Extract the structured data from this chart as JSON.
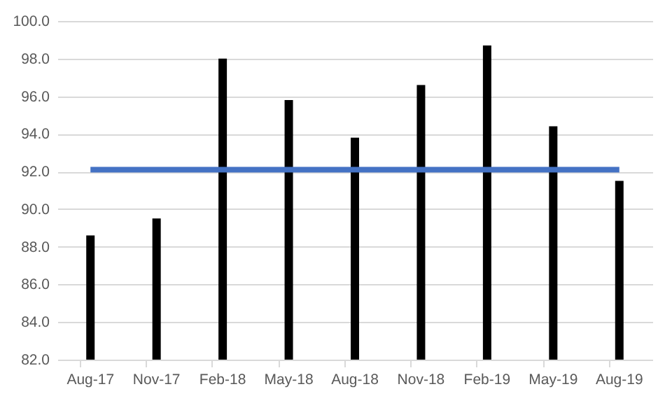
{
  "chart_data": {
    "type": "bar",
    "categories": [
      "Aug-17",
      "Nov-17",
      "Feb-18",
      "May-18",
      "Aug-18",
      "Nov-18",
      "Feb-19",
      "May-19",
      "Aug-19"
    ],
    "series": [
      {
        "color": "#000000",
        "values": [
          88.6,
          89.5,
          98.0,
          95.8,
          93.8,
          96.6,
          98.7,
          94.4,
          91.5
        ]
      },
      {
        "type": "line",
        "color": "#4472c4",
        "values": [
          92.1,
          92.1,
          92.1,
          92.1,
          92.1,
          92.1,
          92.1,
          92.1,
          92.1
        ]
      }
    ],
    "ylim": [
      82,
      100
    ],
    "yticks": [
      {
        "value": 82,
        "label": "82.0"
      },
      {
        "value": 84,
        "label": "84.0"
      },
      {
        "value": 86,
        "label": "86.0"
      },
      {
        "value": 88,
        "label": "88.0"
      },
      {
        "value": 90,
        "label": "90.0"
      },
      {
        "value": 92,
        "label": "92.0"
      },
      {
        "value": 94,
        "label": "94.0"
      },
      {
        "value": 96,
        "label": "96.0"
      },
      {
        "value": 98,
        "label": "98.0"
      },
      {
        "value": 100,
        "label": "100.0"
      }
    ],
    "grid": "y",
    "marker": "none",
    "line_style": "solid"
  }
}
